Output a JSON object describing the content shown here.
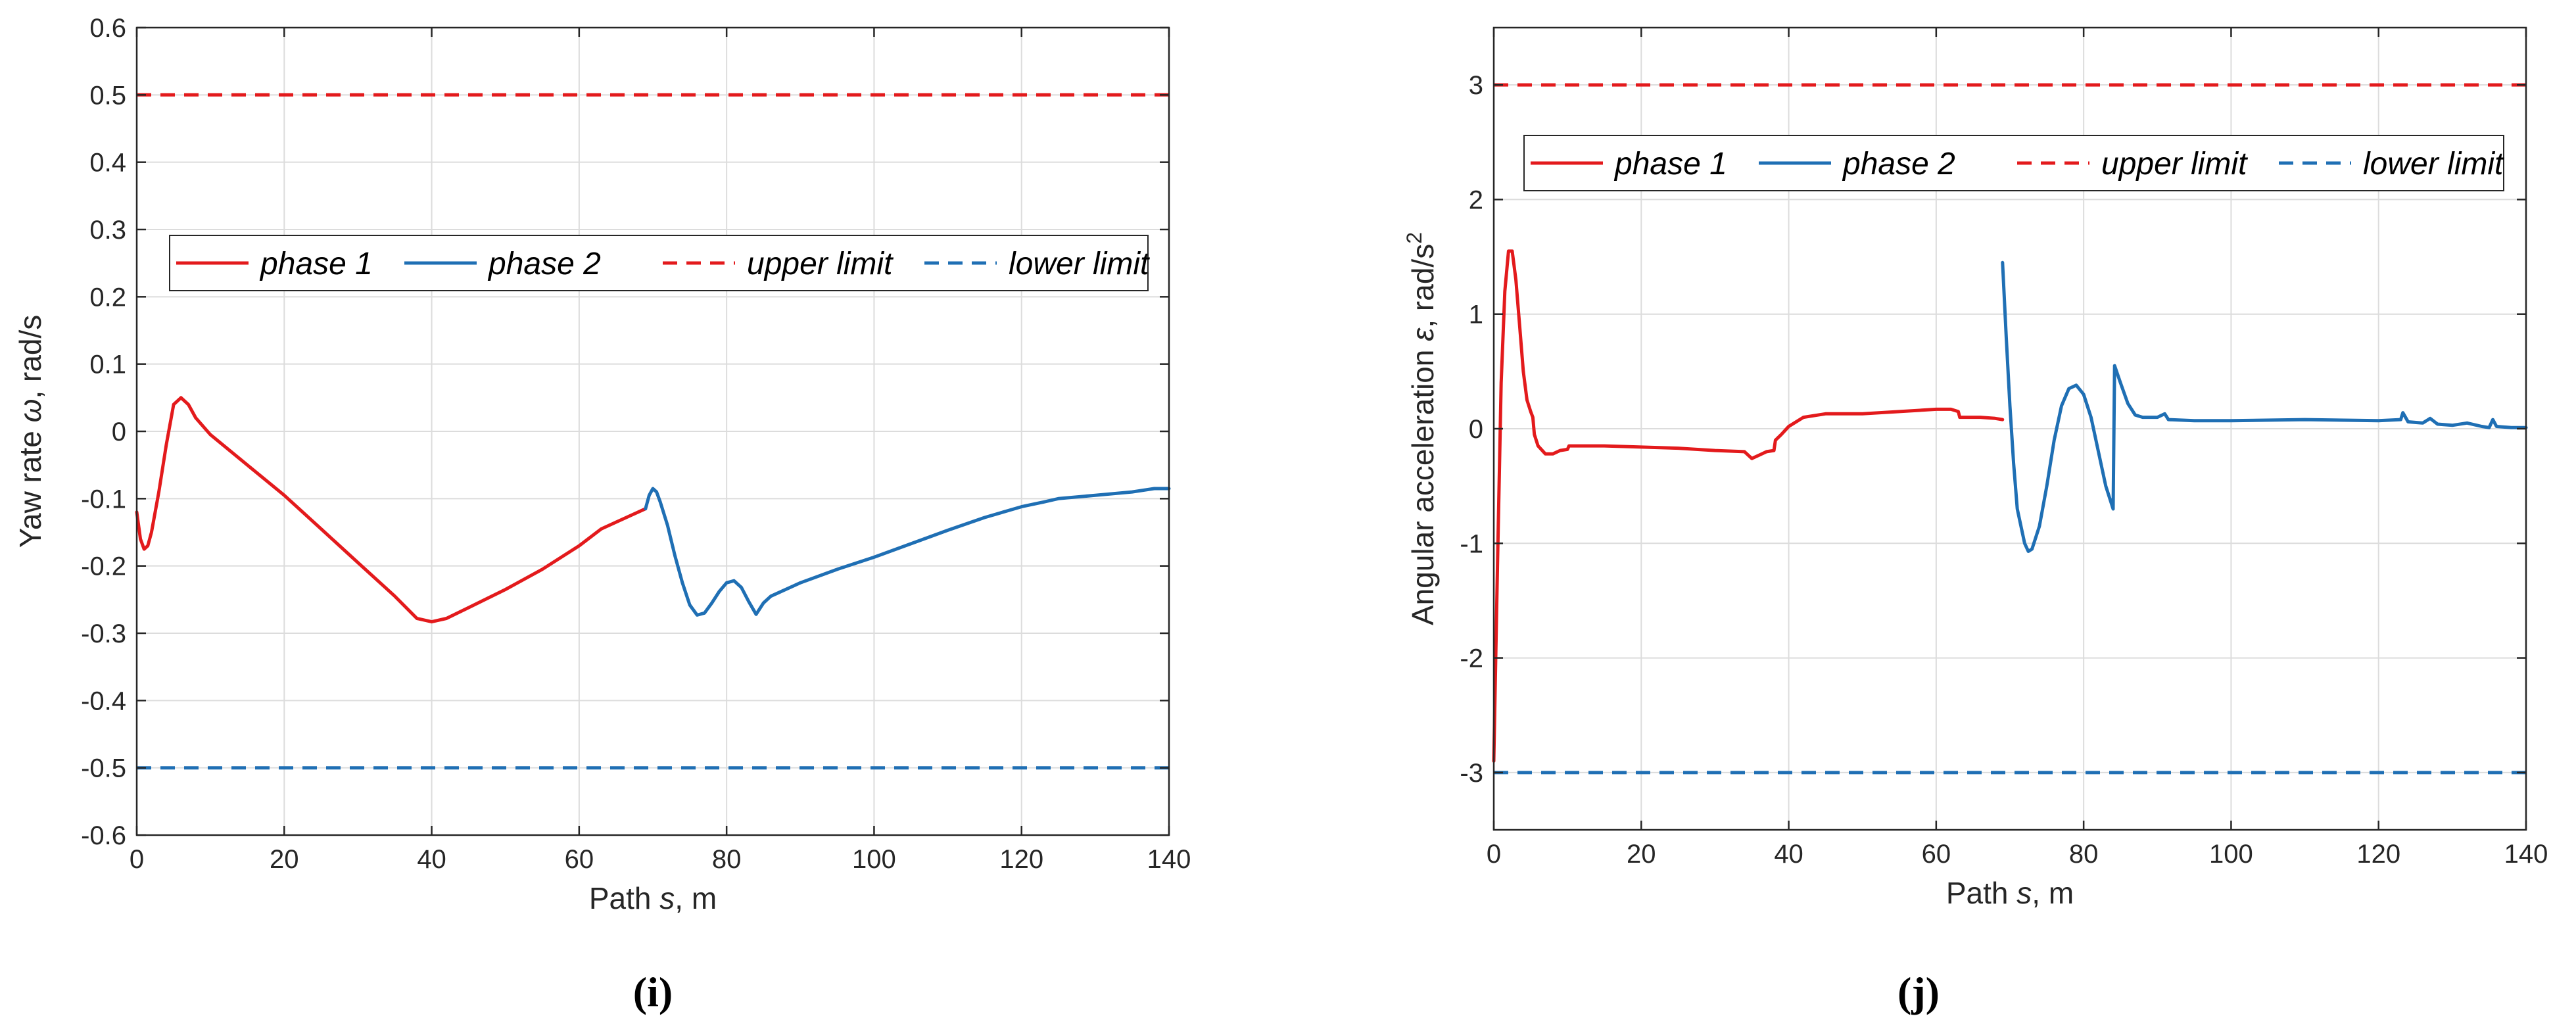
{
  "chart_data": [
    {
      "type": "line",
      "panel_label": "(i)",
      "xlabel_prefix": "Path ",
      "xlabel_symbol": "s",
      "xlabel_suffix": ", m",
      "ylabel_prefix": "Yaw rate ",
      "ylabel_symbol": "ω",
      "ylabel_suffix": ", rad/s",
      "xlim": [
        0,
        140
      ],
      "ylim": [
        -0.6,
        0.6
      ],
      "xticks": [
        0,
        20,
        40,
        60,
        80,
        100,
        120,
        140
      ],
      "yticks": [
        -0.6,
        -0.5,
        -0.4,
        -0.3,
        -0.2,
        -0.1,
        0,
        0.1,
        0.2,
        0.3,
        0.4,
        0.5,
        0.6
      ],
      "ytick_labels": [
        "-0.6",
        "-0.5",
        "-0.4",
        "-0.3",
        "-0.2",
        "-0.1",
        "0",
        "0.1",
        "0.2",
        "0.3",
        "0.4",
        "0.5",
        "0.6"
      ],
      "grid": true,
      "legend": "upper-middle",
      "series": [
        {
          "name": "phase 1",
          "color": "#e31a1c",
          "style": "solid",
          "points": [
            [
              0,
              -0.12
            ],
            [
              0.5,
              -0.16
            ],
            [
              1,
              -0.175
            ],
            [
              1.5,
              -0.17
            ],
            [
              2,
              -0.15
            ],
            [
              3,
              -0.09
            ],
            [
              4,
              -0.02
            ],
            [
              5,
              0.04
            ],
            [
              6,
              0.05
            ],
            [
              7,
              0.04
            ],
            [
              8,
              0.02
            ],
            [
              10,
              -0.005
            ],
            [
              15,
              -0.05
            ],
            [
              20,
              -0.095
            ],
            [
              25,
              -0.145
            ],
            [
              30,
              -0.195
            ],
            [
              35,
              -0.245
            ],
            [
              38,
              -0.278
            ],
            [
              40,
              -0.283
            ],
            [
              42,
              -0.278
            ],
            [
              45,
              -0.262
            ],
            [
              50,
              -0.235
            ],
            [
              55,
              -0.205
            ],
            [
              60,
              -0.17
            ],
            [
              63,
              -0.145
            ],
            [
              65,
              -0.135
            ],
            [
              67,
              -0.125
            ],
            [
              69,
              -0.115
            ]
          ]
        },
        {
          "name": "phase 2",
          "color": "#1f6fb4",
          "style": "solid",
          "points": [
            [
              69,
              -0.115
            ],
            [
              69.5,
              -0.095
            ],
            [
              70,
              -0.085
            ],
            [
              70.5,
              -0.09
            ],
            [
              71,
              -0.105
            ],
            [
              72,
              -0.14
            ],
            [
              73,
              -0.185
            ],
            [
              74,
              -0.225
            ],
            [
              75,
              -0.258
            ],
            [
              76,
              -0.273
            ],
            [
              77,
              -0.27
            ],
            [
              78,
              -0.255
            ],
            [
              79,
              -0.238
            ],
            [
              80,
              -0.225
            ],
            [
              81,
              -0.222
            ],
            [
              82,
              -0.232
            ],
            [
              83,
              -0.253
            ],
            [
              84,
              -0.272
            ],
            [
              85,
              -0.255
            ],
            [
              86,
              -0.245
            ],
            [
              90,
              -0.225
            ],
            [
              95,
              -0.205
            ],
            [
              100,
              -0.187
            ],
            [
              105,
              -0.167
            ],
            [
              110,
              -0.147
            ],
            [
              115,
              -0.128
            ],
            [
              120,
              -0.112
            ],
            [
              123,
              -0.105
            ],
            [
              125,
              -0.1
            ],
            [
              130,
              -0.095
            ],
            [
              135,
              -0.09
            ],
            [
              138,
              -0.085
            ],
            [
              140,
              -0.085
            ]
          ]
        },
        {
          "name": "upper limit",
          "color": "#e31a1c",
          "style": "dashed",
          "points": [
            [
              0,
              0.5
            ],
            [
              140,
              0.5
            ]
          ]
        },
        {
          "name": "lower limit",
          "color": "#1f6fb4",
          "style": "dashed",
          "points": [
            [
              0,
              -0.5
            ],
            [
              140,
              -0.5
            ]
          ]
        }
      ]
    },
    {
      "type": "line",
      "panel_label": "(j)",
      "xlabel_prefix": "Path ",
      "xlabel_symbol": "s",
      "xlabel_suffix": ", m",
      "ylabel_prefix": "Angular acceleration ",
      "ylabel_symbol": "ε",
      "ylabel_suffix": ", rad/s",
      "ylabel_superscript": "2",
      "xlim": [
        0,
        140
      ],
      "ylim": [
        -3.5,
        3.5
      ],
      "xticks": [
        0,
        20,
        40,
        60,
        80,
        100,
        120,
        140
      ],
      "yticks": [
        -3,
        -2,
        -1,
        0,
        1,
        2,
        3
      ],
      "ytick_labels": [
        "-3",
        "-2",
        "-1",
        "0",
        "1",
        "2",
        "3"
      ],
      "grid": true,
      "legend": "top",
      "series": [
        {
          "name": "phase 1",
          "color": "#e31a1c",
          "style": "solid",
          "points": [
            [
              0,
              -2.9
            ],
            [
              0.5,
              -1.2
            ],
            [
              1,
              0.4
            ],
            [
              1.5,
              1.2
            ],
            [
              2,
              1.55
            ],
            [
              2.5,
              1.55
            ],
            [
              3,
              1.3
            ],
            [
              3.5,
              0.9
            ],
            [
              4,
              0.5
            ],
            [
              4.5,
              0.25
            ],
            [
              5,
              0.15
            ],
            [
              5.3,
              0.1
            ],
            [
              5.5,
              -0.05
            ],
            [
              6,
              -0.15
            ],
            [
              7,
              -0.22
            ],
            [
              8,
              -0.22
            ],
            [
              9,
              -0.19
            ],
            [
              10,
              -0.18
            ],
            [
              10.2,
              -0.15
            ],
            [
              15,
              -0.15
            ],
            [
              20,
              -0.16
            ],
            [
              25,
              -0.17
            ],
            [
              30,
              -0.19
            ],
            [
              34,
              -0.2
            ],
            [
              35,
              -0.26
            ],
            [
              36,
              -0.23
            ],
            [
              37,
              -0.2
            ],
            [
              38,
              -0.19
            ],
            [
              38.2,
              -0.1
            ],
            [
              39,
              -0.05
            ],
            [
              40,
              0.02
            ],
            [
              42,
              0.1
            ],
            [
              45,
              0.13
            ],
            [
              50,
              0.13
            ],
            [
              55,
              0.15
            ],
            [
              60,
              0.17
            ],
            [
              62,
              0.17
            ],
            [
              63,
              0.15
            ],
            [
              63.2,
              0.1
            ],
            [
              66,
              0.1
            ],
            [
              68,
              0.09
            ],
            [
              69,
              0.08
            ]
          ]
        },
        {
          "name": "phase 2",
          "color": "#1f6fb4",
          "style": "solid",
          "points": [
            [
              69,
              1.45
            ],
            [
              69.5,
              0.8
            ],
            [
              70,
              0.2
            ],
            [
              70.5,
              -0.3
            ],
            [
              71,
              -0.7
            ],
            [
              72,
              -1.0
            ],
            [
              72.5,
              -1.07
            ],
            [
              73,
              -1.05
            ],
            [
              74,
              -0.85
            ],
            [
              75,
              -0.5
            ],
            [
              76,
              -0.1
            ],
            [
              77,
              0.2
            ],
            [
              78,
              0.35
            ],
            [
              79,
              0.38
            ],
            [
              80,
              0.3
            ],
            [
              81,
              0.1
            ],
            [
              82,
              -0.2
            ],
            [
              83,
              -0.5
            ],
            [
              84,
              -0.7
            ],
            [
              84.2,
              0.55
            ],
            [
              85,
              0.4
            ],
            [
              86,
              0.22
            ],
            [
              87,
              0.12
            ],
            [
              88,
              0.1
            ],
            [
              90,
              0.1
            ],
            [
              91,
              0.13
            ],
            [
              91.5,
              0.08
            ],
            [
              95,
              0.07
            ],
            [
              100,
              0.07
            ],
            [
              110,
              0.08
            ],
            [
              120,
              0.07
            ],
            [
              123,
              0.08
            ],
            [
              123.3,
              0.14
            ],
            [
              124,
              0.06
            ],
            [
              126,
              0.05
            ],
            [
              127,
              0.09
            ],
            [
              128,
              0.04
            ],
            [
              130,
              0.03
            ],
            [
              132,
              0.05
            ],
            [
              134,
              0.02
            ],
            [
              135,
              0.01
            ],
            [
              135.5,
              0.08
            ],
            [
              136,
              0.02
            ],
            [
              138,
              0.01
            ],
            [
              140,
              0.01
            ]
          ]
        },
        {
          "name": "upper limit",
          "color": "#e31a1c",
          "style": "dashed",
          "points": [
            [
              0,
              3
            ],
            [
              140,
              3
            ]
          ]
        },
        {
          "name": "lower limit",
          "color": "#1f6fb4",
          "style": "dashed",
          "points": [
            [
              0,
              -3
            ],
            [
              140,
              -3
            ]
          ]
        }
      ]
    }
  ]
}
